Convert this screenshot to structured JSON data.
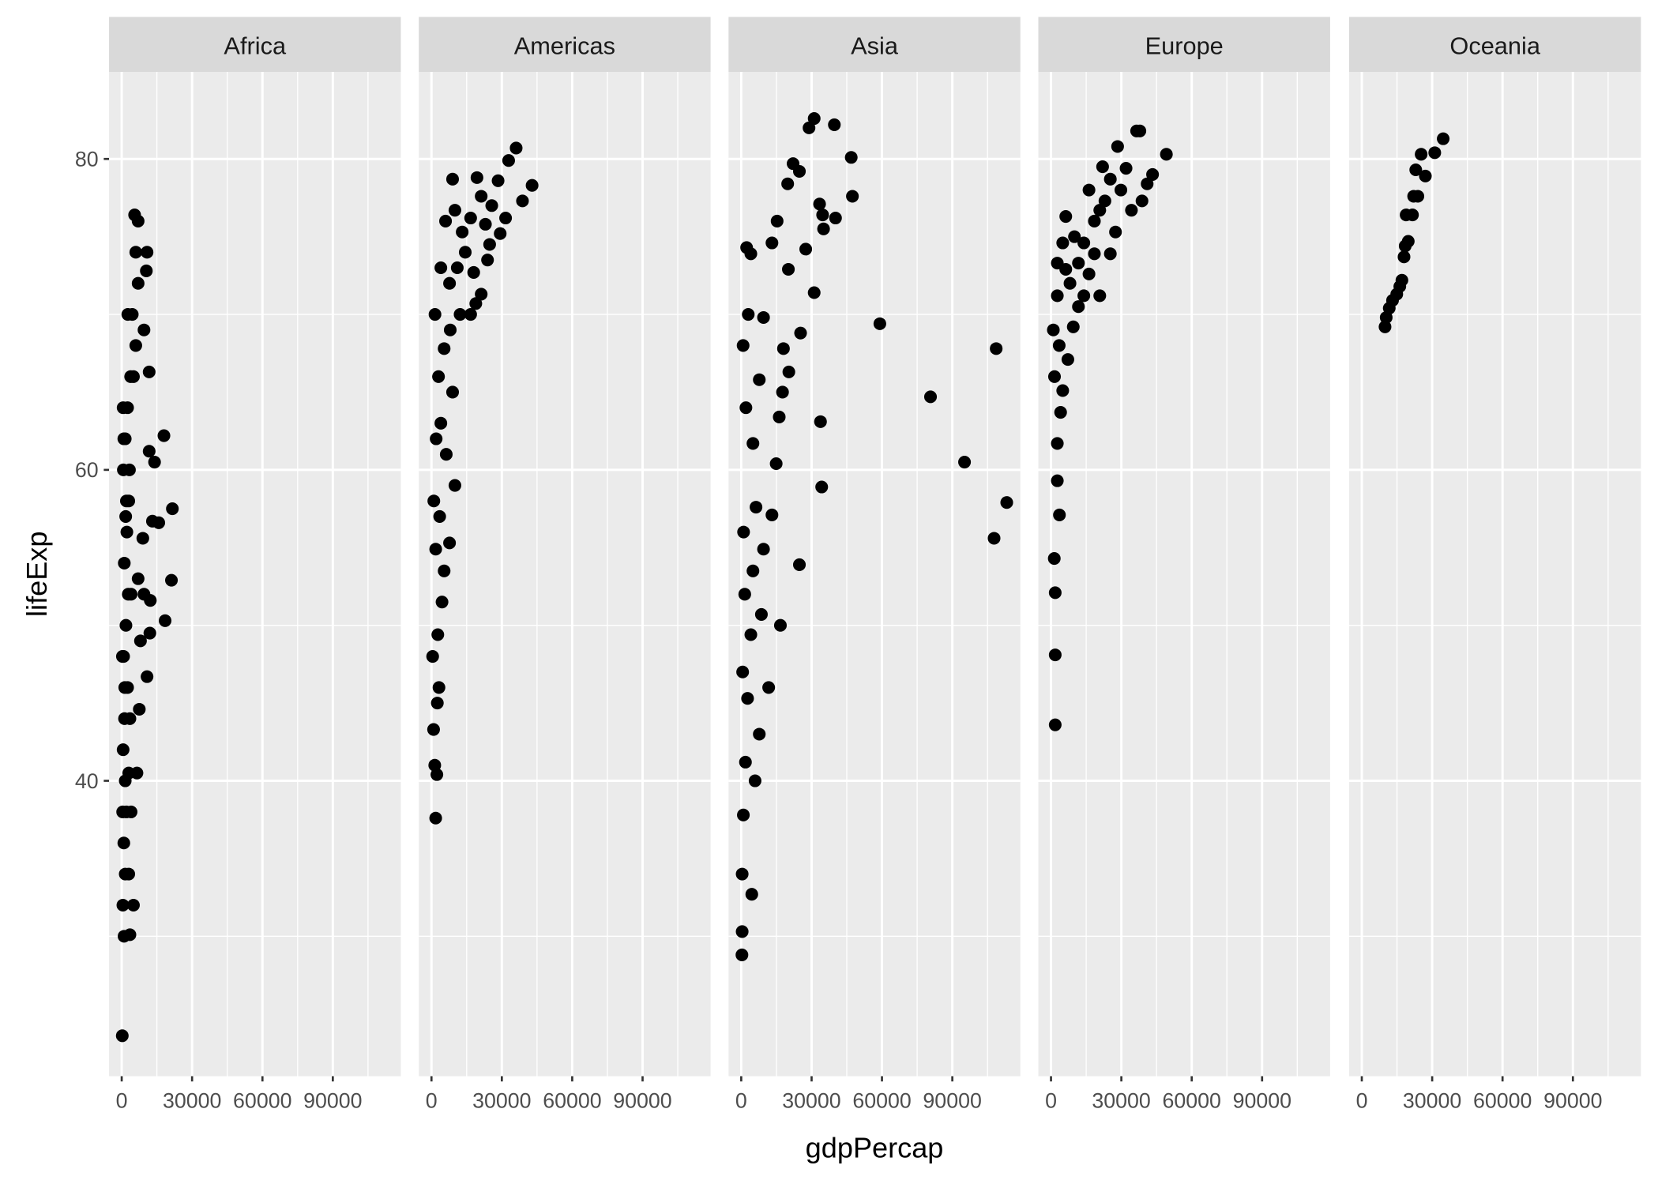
{
  "chart_data": {
    "type": "scatter",
    "facet_by": "continent",
    "xlabel": "gdpPercap",
    "ylabel": "lifeExp",
    "xlim": [
      -5400,
      119000
    ],
    "ylim": [
      21.0,
      85.6
    ],
    "x_ticks": [
      0,
      30000,
      60000,
      90000
    ],
    "x_tick_labels": [
      "0",
      "30000",
      "60000",
      "90000"
    ],
    "y_ticks": [
      40,
      60,
      80
    ],
    "y_tick_labels": [
      "40",
      "60",
      "80"
    ],
    "grid": true,
    "colors": {
      "panel_bg": "#ebebeb",
      "strip_bg": "#d9d9d9",
      "point": "#000000",
      "grid": "#ffffff",
      "text": "#4d4d4d"
    },
    "facets": [
      {
        "name": "Africa",
        "points": [
          [
            241,
            23.6
          ],
          [
            1000,
            30.0
          ],
          [
            3500,
            30.1
          ],
          [
            500,
            32
          ],
          [
            1500,
            34
          ],
          [
            900,
            36
          ],
          [
            2000,
            38
          ],
          [
            3000,
            40.5
          ],
          [
            600,
            42
          ],
          [
            1200,
            44
          ],
          [
            2500,
            46
          ],
          [
            800,
            48
          ],
          [
            1800,
            50
          ],
          [
            4000,
            52
          ],
          [
            1100,
            54
          ],
          [
            2200,
            56
          ],
          [
            3000,
            58
          ],
          [
            700,
            60
          ],
          [
            1500,
            62
          ],
          [
            2500,
            64
          ],
          [
            5000,
            66
          ],
          [
            6000,
            68
          ],
          [
            4500,
            70
          ],
          [
            7000,
            72
          ],
          [
            6000,
            74
          ],
          [
            7000,
            76
          ],
          [
            5500,
            76.4
          ],
          [
            10800,
            74
          ],
          [
            10500,
            72.8
          ],
          [
            9500,
            69
          ],
          [
            11700,
            66.3
          ],
          [
            11700,
            61.2
          ],
          [
            18000,
            62.2
          ],
          [
            14000,
            60.5
          ],
          [
            13100,
            56.7
          ],
          [
            15800,
            56.6
          ],
          [
            21600,
            57.5
          ],
          [
            21200,
            52.9
          ],
          [
            18500,
            50.3
          ],
          [
            12200,
            51.6
          ],
          [
            10800,
            46.7
          ],
          [
            8000,
            49
          ],
          [
            7500,
            44.6
          ],
          [
            6500,
            40.5
          ],
          [
            5000,
            32
          ],
          [
            3000,
            34
          ],
          [
            4000,
            38
          ],
          [
            3500,
            44
          ],
          [
            2800,
            52
          ],
          [
            3300,
            60
          ],
          [
            1700,
            57
          ],
          [
            600,
            64
          ],
          [
            9000,
            55.6
          ],
          [
            12000,
            49.5
          ],
          [
            7000,
            53
          ],
          [
            9500,
            52
          ],
          [
            400,
            38
          ],
          [
            1300,
            46
          ],
          [
            2000,
            58
          ],
          [
            900,
            62
          ],
          [
            3800,
            66
          ],
          [
            2600,
            70
          ],
          [
            300,
            48
          ],
          [
            1500,
            40
          ]
        ]
      },
      {
        "name": "Americas",
        "points": [
          [
            1800,
            37.6
          ],
          [
            2300,
            40.4
          ],
          [
            1400,
            41
          ],
          [
            900,
            43.3
          ],
          [
            3200,
            46
          ],
          [
            2700,
            49.4
          ],
          [
            4500,
            51.5
          ],
          [
            5400,
            53.5
          ],
          [
            1800,
            54.9
          ],
          [
            7700,
            55.3
          ],
          [
            10000,
            59
          ],
          [
            6300,
            61
          ],
          [
            4000,
            63
          ],
          [
            9000,
            65
          ],
          [
            5400,
            67.8
          ],
          [
            12200,
            70
          ],
          [
            7700,
            72
          ],
          [
            14400,
            74
          ],
          [
            10000,
            76.7
          ],
          [
            9000,
            78.7
          ],
          [
            36100,
            80.7
          ],
          [
            32900,
            79.9
          ],
          [
            42900,
            78.3
          ],
          [
            38800,
            77.3
          ],
          [
            31600,
            76.2
          ],
          [
            29300,
            75.2
          ],
          [
            25700,
            77
          ],
          [
            28400,
            78.6
          ],
          [
            19400,
            78.8
          ],
          [
            23000,
            75.8
          ],
          [
            24800,
            74.5
          ],
          [
            23900,
            73.5
          ],
          [
            21200,
            71.3
          ],
          [
            18900,
            70.7
          ],
          [
            16700,
            70
          ],
          [
            18000,
            72.7
          ],
          [
            21200,
            77.6
          ],
          [
            16700,
            76.2
          ],
          [
            13100,
            75.3
          ],
          [
            500,
            48
          ],
          [
            1000,
            58
          ],
          [
            2000,
            62
          ],
          [
            3000,
            66
          ],
          [
            1500,
            70
          ],
          [
            4000,
            73
          ],
          [
            6000,
            76
          ],
          [
            3500,
            57
          ],
          [
            2500,
            45
          ],
          [
            8000,
            69
          ],
          [
            11000,
            73
          ]
        ]
      },
      {
        "name": "Asia",
        "points": [
          [
            59100,
            69.4
          ],
          [
            80700,
            64.7
          ],
          [
            95200,
            60.5
          ],
          [
            108700,
            67.8
          ],
          [
            107800,
            55.6
          ],
          [
            113200,
            57.9
          ],
          [
            46900,
            80.1
          ],
          [
            47400,
            77.6
          ],
          [
            40200,
            76.2
          ],
          [
            39700,
            82.2
          ],
          [
            31100,
            82.6
          ],
          [
            28900,
            82
          ],
          [
            33400,
            77.1
          ],
          [
            34700,
            76.4
          ],
          [
            35100,
            75.5
          ],
          [
            31100,
            71.4
          ],
          [
            33800,
            63.1
          ],
          [
            34300,
            58.9
          ],
          [
            24800,
            53.9
          ],
          [
            16700,
            50
          ],
          [
            25300,
            68.8
          ],
          [
            27500,
            74.2
          ],
          [
            24800,
            79.2
          ],
          [
            22100,
            79.7
          ],
          [
            20100,
            72.9
          ],
          [
            18000,
            67.8
          ],
          [
            20300,
            66.3
          ],
          [
            17600,
            65
          ],
          [
            16200,
            63.4
          ],
          [
            14900,
            60.4
          ],
          [
            13100,
            57.1
          ],
          [
            11700,
            46
          ],
          [
            7700,
            43
          ],
          [
            5900,
            40
          ],
          [
            300,
            28.8
          ],
          [
            400,
            30.3
          ],
          [
            400,
            34
          ],
          [
            900,
            37.8
          ],
          [
            1800,
            41.2
          ],
          [
            2700,
            45.3
          ],
          [
            4100,
            49.4
          ],
          [
            5000,
            53.5
          ],
          [
            6300,
            57.6
          ],
          [
            5000,
            61.7
          ],
          [
            7700,
            65.8
          ],
          [
            9500,
            69.8
          ],
          [
            4100,
            73.9
          ],
          [
            2300,
            74.3
          ],
          [
            13100,
            74.6
          ],
          [
            15300,
            76
          ],
          [
            19800,
            78.4
          ],
          [
            8600,
            50.7
          ],
          [
            9500,
            54.9
          ],
          [
            4500,
            32.7
          ],
          [
            1000,
            56
          ],
          [
            2000,
            64
          ],
          [
            800,
            68
          ],
          [
            3000,
            70
          ],
          [
            1500,
            52
          ],
          [
            600,
            47
          ]
        ]
      },
      {
        "name": "Europe",
        "points": [
          [
            1800,
            43.6
          ],
          [
            1800,
            48.1
          ],
          [
            1800,
            52.1
          ],
          [
            1400,
            54.3
          ],
          [
            3600,
            57.1
          ],
          [
            2700,
            59.3
          ],
          [
            2700,
            61.7
          ],
          [
            4100,
            63.7
          ],
          [
            5000,
            65.1
          ],
          [
            7200,
            67.1
          ],
          [
            9500,
            69.2
          ],
          [
            11700,
            70.5
          ],
          [
            6300,
            72.9
          ],
          [
            6300,
            76.3
          ],
          [
            16200,
            72.6
          ],
          [
            25300,
            73.9
          ],
          [
            20800,
            71.2
          ],
          [
            27500,
            75.3
          ],
          [
            29800,
            78
          ],
          [
            32000,
            79.4
          ],
          [
            28400,
            80.8
          ],
          [
            36500,
            81.8
          ],
          [
            37900,
            81.8
          ],
          [
            49200,
            80.3
          ],
          [
            43300,
            79
          ],
          [
            41000,
            78.4
          ],
          [
            38800,
            77.3
          ],
          [
            34300,
            76.7
          ],
          [
            23000,
            77.3
          ],
          [
            18500,
            76
          ],
          [
            14000,
            74.6
          ],
          [
            11700,
            73.3
          ],
          [
            20800,
            76.7
          ],
          [
            25300,
            78.7
          ],
          [
            16200,
            78
          ],
          [
            2700,
            73.3
          ],
          [
            2700,
            71.2
          ],
          [
            5000,
            74.6
          ],
          [
            8100,
            72
          ],
          [
            14000,
            71.2
          ],
          [
            18500,
            73.9
          ],
          [
            1000,
            69
          ],
          [
            1500,
            66
          ],
          [
            3500,
            68
          ],
          [
            10000,
            75
          ],
          [
            22000,
            79.5
          ]
        ]
      },
      {
        "name": "Oceania",
        "points": [
          [
            9900,
            69.2
          ],
          [
            10400,
            69.8
          ],
          [
            11700,
            70.4
          ],
          [
            13100,
            70.9
          ],
          [
            14900,
            71.3
          ],
          [
            16200,
            71.8
          ],
          [
            17100,
            72.2
          ],
          [
            18000,
            73.7
          ],
          [
            18500,
            74.4
          ],
          [
            19800,
            74.7
          ],
          [
            18900,
            76.4
          ],
          [
            21600,
            76.4
          ],
          [
            22100,
            77.6
          ],
          [
            23900,
            77.6
          ],
          [
            23000,
            79.3
          ],
          [
            27100,
            78.9
          ],
          [
            25300,
            80.3
          ],
          [
            31100,
            80.4
          ],
          [
            34700,
            81.3
          ]
        ]
      }
    ]
  }
}
